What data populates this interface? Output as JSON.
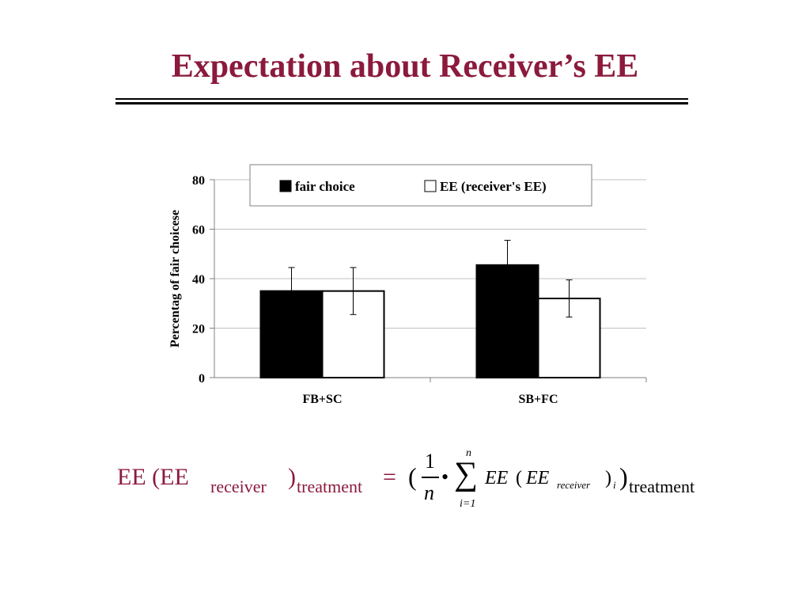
{
  "slide": {
    "title": "Expectation about Receiver’s EE",
    "title_color": "#8b1a3c"
  },
  "chart_data": {
    "type": "bar",
    "categories": [
      "FB+SC",
      "SB+FC"
    ],
    "series": [
      {
        "name": "fair choice",
        "values": [
          35,
          45.5
        ],
        "errors": [
          9.5,
          10
        ],
        "color": "#000000"
      },
      {
        "name": "EE (receiver's EE)",
        "values": [
          35,
          32
        ],
        "errors": [
          9.5,
          7.5
        ],
        "color": "#ffffff"
      }
    ],
    "ylabel": "Percentag of fair choicese",
    "xlabel": "",
    "ylim": [
      0,
      80
    ],
    "yticks": [
      0,
      20,
      40,
      60,
      80
    ],
    "grid": true,
    "legend_position": "top"
  },
  "formula": {
    "lhs_ee": "EE (EE",
    "lhs_sub_receiver": "receiver",
    "lhs_paren": ")",
    "lhs_sub_treatment": "treatment",
    "equals": "=",
    "open_paren": "(",
    "frac_num": "1",
    "frac_den": "n",
    "dot": "•",
    "sigma": "∑",
    "sum_upper": "n",
    "sum_lower": "i=1",
    "term_ee": "EE",
    "term_open": "(",
    "term_ee2": "EE",
    "term_sub_receiver": "receiver",
    "term_close": ")",
    "term_sub_i": "i",
    "close_paren": ")",
    "rhs_sub_treatment": "treatment",
    "color": "#8b1a3c"
  }
}
